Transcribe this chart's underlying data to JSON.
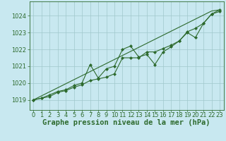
{
  "title": "Graphe pression niveau de la mer (hPa)",
  "background_color": "#c8e8f0",
  "plot_bg_color": "#c8e8f0",
  "bottom_bg_color": "#2d6a2d",
  "line_color": "#2d6a2d",
  "marker_color": "#2d6a2d",
  "x": [
    0,
    1,
    2,
    3,
    4,
    5,
    6,
    7,
    8,
    9,
    10,
    11,
    12,
    13,
    14,
    15,
    16,
    17,
    18,
    19,
    20,
    21,
    22,
    23
  ],
  "y_wavy": [
    1019.0,
    1019.1,
    1019.3,
    1019.5,
    1019.6,
    1019.85,
    1020.0,
    1021.1,
    1020.3,
    1020.85,
    1021.0,
    1022.0,
    1022.2,
    1021.55,
    1021.7,
    1021.1,
    1021.85,
    1022.15,
    1022.5,
    1023.0,
    1022.7,
    1023.55,
    1024.1,
    1024.25
  ],
  "y_smooth": [
    1019.0,
    1019.1,
    1019.2,
    1019.45,
    1019.55,
    1019.75,
    1019.9,
    1020.15,
    1020.25,
    1020.35,
    1020.55,
    1021.5,
    1021.5,
    1021.5,
    1021.85,
    1021.85,
    1022.05,
    1022.25,
    1022.5,
    1023.05,
    1023.25,
    1023.55,
    1024.1,
    1024.35
  ],
  "y_trend": [
    1019.0,
    1019.24,
    1019.48,
    1019.72,
    1019.96,
    1020.2,
    1020.44,
    1020.68,
    1020.92,
    1021.16,
    1021.4,
    1021.64,
    1021.88,
    1022.12,
    1022.36,
    1022.6,
    1022.84,
    1023.08,
    1023.32,
    1023.56,
    1023.8,
    1024.04,
    1024.28,
    1024.35
  ],
  "ylim": [
    1018.4,
    1024.85
  ],
  "yticks": [
    1019,
    1020,
    1021,
    1022,
    1023,
    1024
  ],
  "xlim": [
    -0.5,
    23.5
  ],
  "xticks": [
    0,
    1,
    2,
    3,
    4,
    5,
    6,
    7,
    8,
    9,
    10,
    11,
    12,
    13,
    14,
    15,
    16,
    17,
    18,
    19,
    20,
    21,
    22,
    23
  ],
  "grid_color": "#a0c8cc",
  "title_color": "#2d6a2d",
  "title_fontsize": 7.5,
  "tick_fontsize": 6.0,
  "bottom_label_color": "#ffffff"
}
